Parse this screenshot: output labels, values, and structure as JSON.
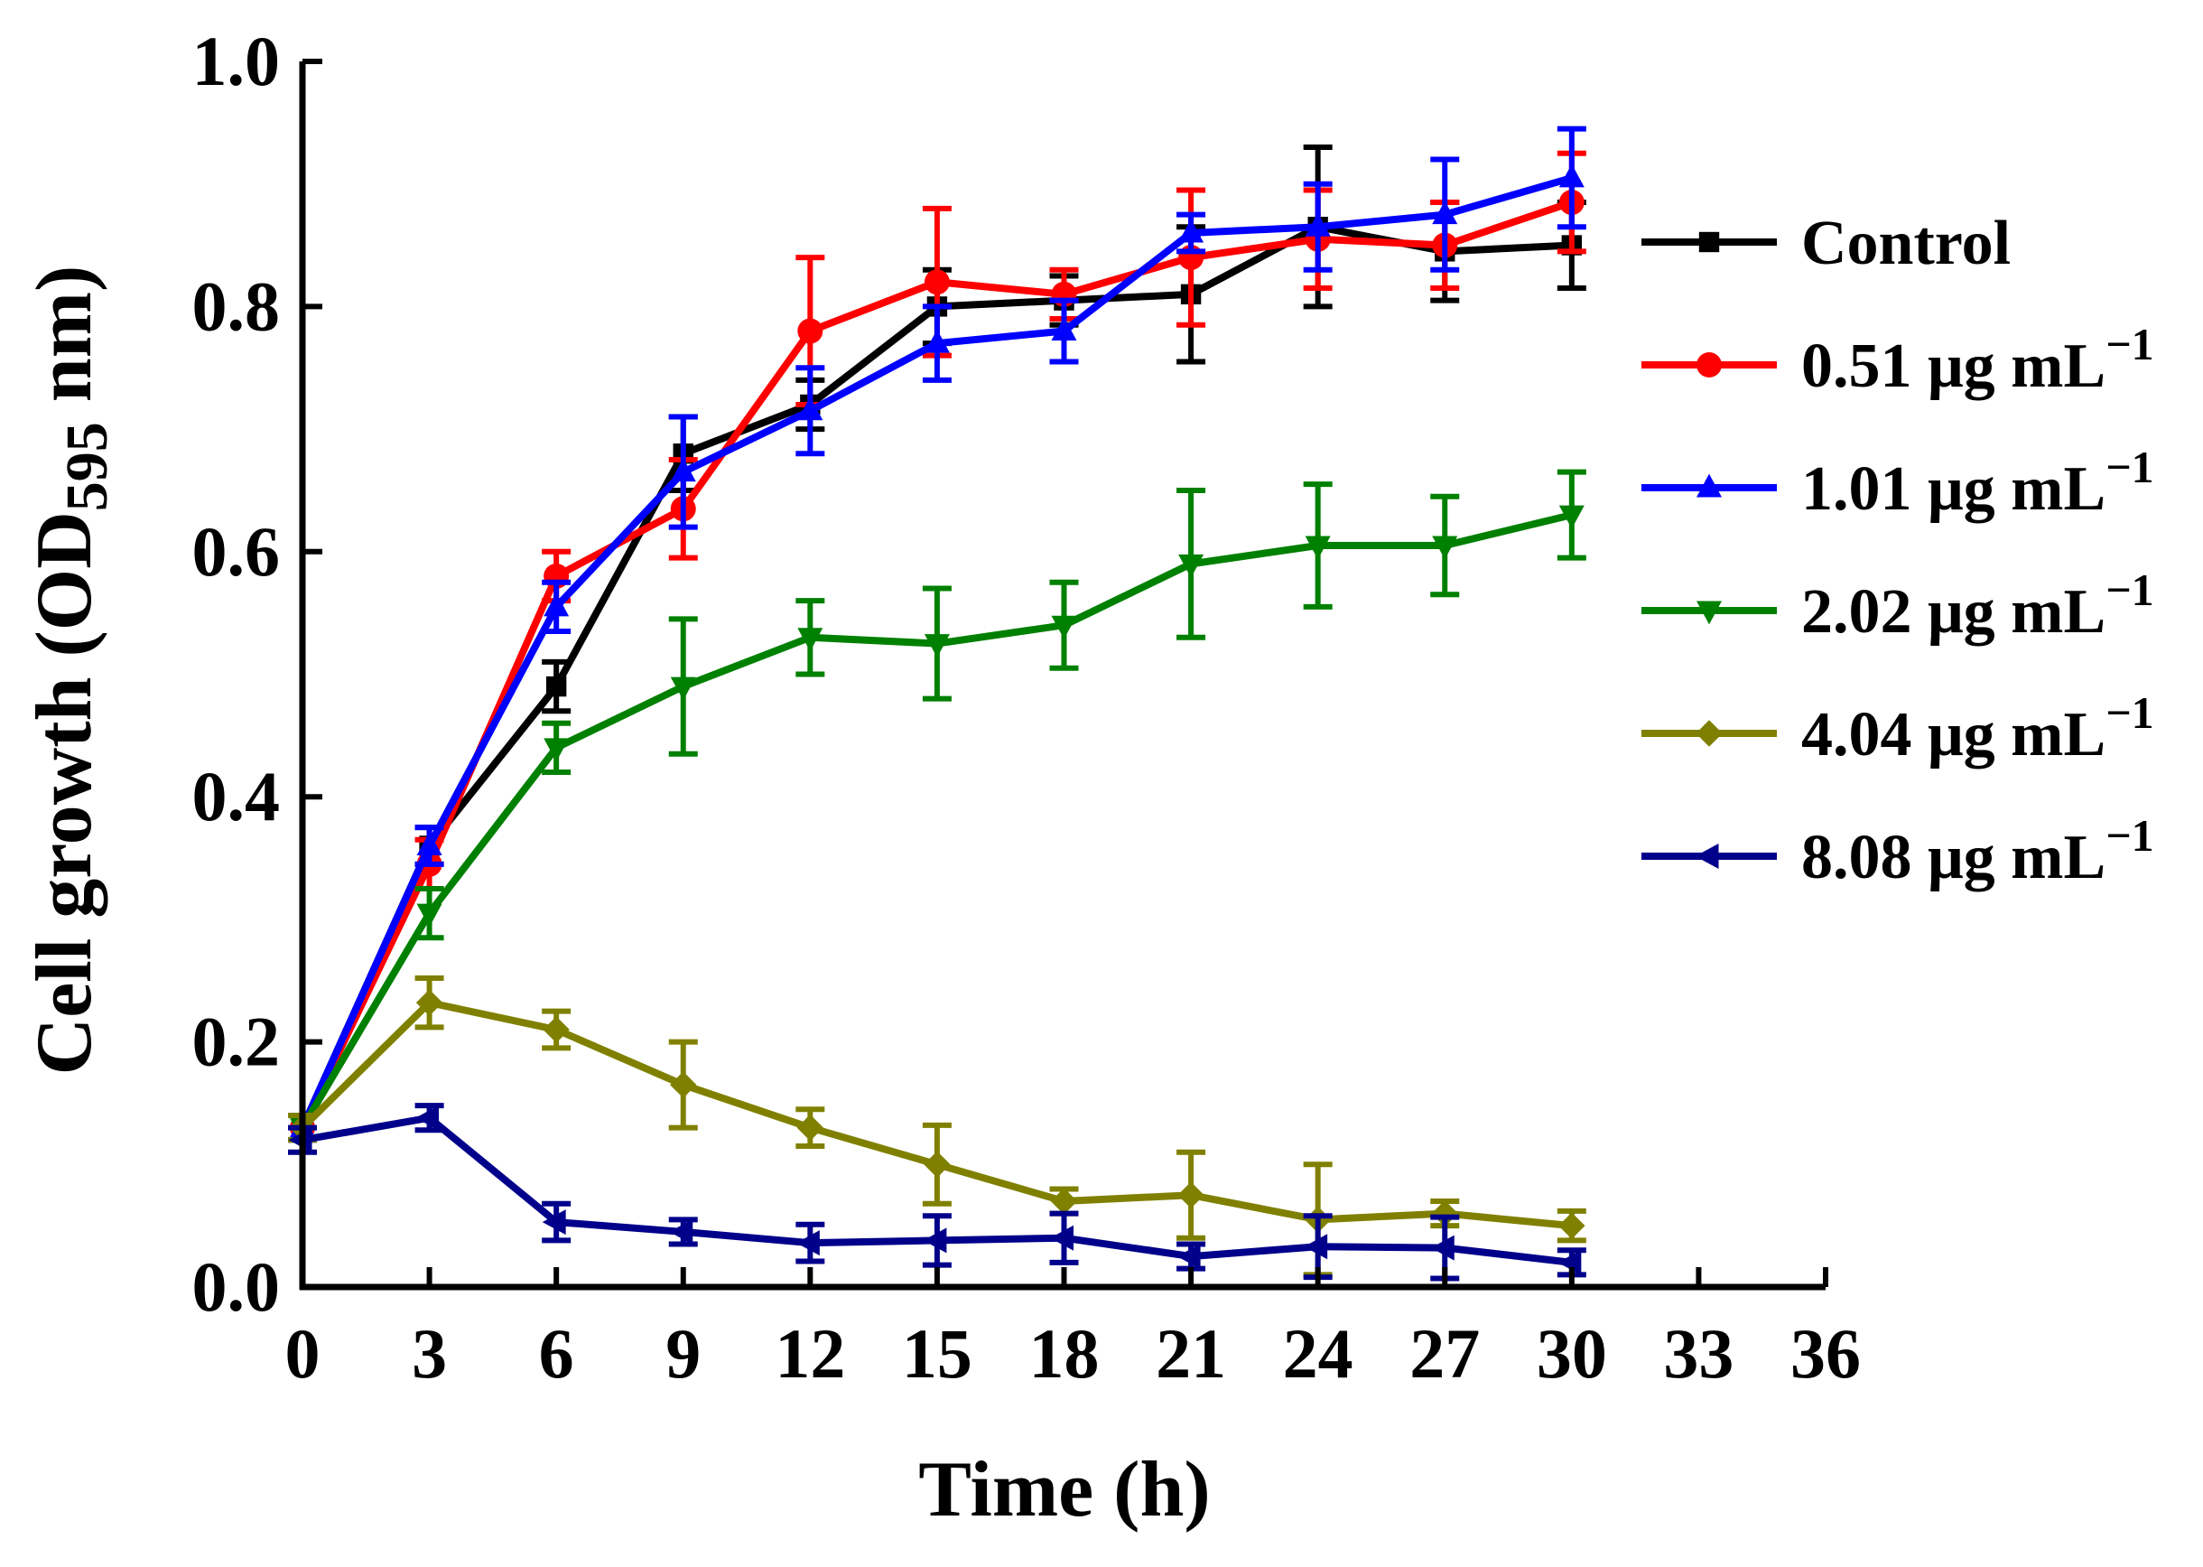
{
  "chart_data": {
    "type": "line",
    "title": "",
    "xlabel": "Time (h)",
    "ylabel": "Cell growth (OD595 nm)",
    "ylabel_parts": {
      "before": "Cell growth (OD",
      "sub": "595",
      "after": " nm)"
    },
    "xlim": [
      0,
      36
    ],
    "ylim": [
      0,
      1.0
    ],
    "xticks": [
      0,
      3,
      6,
      9,
      12,
      15,
      18,
      21,
      24,
      27,
      30,
      33,
      36
    ],
    "xtick_labels": [
      "0",
      "3",
      "6",
      "9",
      "12",
      "15",
      "18",
      "21",
      "24",
      "27",
      "30",
      "33",
      "36"
    ],
    "yticks": [
      0,
      0.2,
      0.4,
      0.6,
      0.8,
      1.0
    ],
    "ytick_labels": [
      "0.0",
      "0.2",
      "0.4",
      "0.6",
      "0.8",
      "1.0"
    ],
    "grid": false,
    "legend_position": "right",
    "x": [
      0,
      3,
      6,
      9,
      12,
      15,
      18,
      21,
      24,
      27,
      30
    ],
    "series": [
      {
        "name": "Control",
        "label_value": "Control",
        "label_unit": "",
        "label_sup": "",
        "color": "#000000",
        "marker": "square",
        "values": [
          0.13,
          0.36,
          0.49,
          0.68,
          0.72,
          0.8,
          0.805,
          0.81,
          0.865,
          0.845,
          0.85
        ],
        "errors": [
          0.01,
          0.015,
          0.02,
          0.03,
          0.02,
          0.03,
          0.02,
          0.055,
          0.065,
          0.04,
          0.035
        ]
      },
      {
        "name": "0.51 μg mL−1",
        "label_value": "0.51",
        "label_unit": "μg mL",
        "label_sup": "−1",
        "color": "#ff0000",
        "marker": "circle",
        "values": [
          0.13,
          0.345,
          0.58,
          0.635,
          0.78,
          0.82,
          0.81,
          0.84,
          0.855,
          0.85,
          0.885
        ],
        "errors": [
          0.01,
          0.02,
          0.02,
          0.04,
          0.06,
          0.06,
          0.02,
          0.055,
          0.04,
          0.035,
          0.04
        ]
      },
      {
        "name": "1.01 μg mL−1",
        "label_value": "1.01",
        "label_unit": "μg mL",
        "label_sup": "−1",
        "color": "#0000ff",
        "marker": "triangle-up",
        "values": [
          0.13,
          0.36,
          0.555,
          0.665,
          0.715,
          0.77,
          0.78,
          0.86,
          0.865,
          0.875,
          0.905
        ],
        "errors": [
          0.01,
          0.015,
          0.02,
          0.045,
          0.035,
          0.03,
          0.025,
          0.015,
          0.035,
          0.045,
          0.04
        ]
      },
      {
        "name": "2.02 μg mL−1",
        "label_value": "2.02",
        "label_unit": "μg mL",
        "label_sup": "−1",
        "color": "#008000",
        "marker": "triangle-down",
        "values": [
          0.13,
          0.305,
          0.44,
          0.49,
          0.53,
          0.525,
          0.54,
          0.59,
          0.605,
          0.605,
          0.63
        ],
        "errors": [
          0.01,
          0.02,
          0.02,
          0.055,
          0.03,
          0.045,
          0.035,
          0.06,
          0.05,
          0.04,
          0.035
        ]
      },
      {
        "name": "4.04 μg mL−1",
        "label_value": "4.04",
        "label_unit": "μg mL",
        "label_sup": "−1",
        "color": "#808000",
        "marker": "diamond",
        "values": [
          0.13,
          0.232,
          0.21,
          0.165,
          0.13,
          0.1,
          0.07,
          0.075,
          0.055,
          0.06,
          0.05
        ],
        "errors": [
          0.01,
          0.02,
          0.015,
          0.035,
          0.015,
          0.032,
          0.01,
          0.035,
          0.045,
          0.01,
          0.012
        ]
      },
      {
        "name": "8.08 μg mL−1",
        "label_value": "8.08",
        "label_unit": "μg mL",
        "label_sup": "−1",
        "color": "#00008b",
        "marker": "triangle-left",
        "values": [
          0.12,
          0.138,
          0.053,
          0.045,
          0.036,
          0.038,
          0.04,
          0.025,
          0.033,
          0.032,
          0.02
        ],
        "errors": [
          0.01,
          0.01,
          0.015,
          0.01,
          0.015,
          0.02,
          0.02,
          0.01,
          0.025,
          0.025,
          0.01
        ]
      }
    ]
  }
}
